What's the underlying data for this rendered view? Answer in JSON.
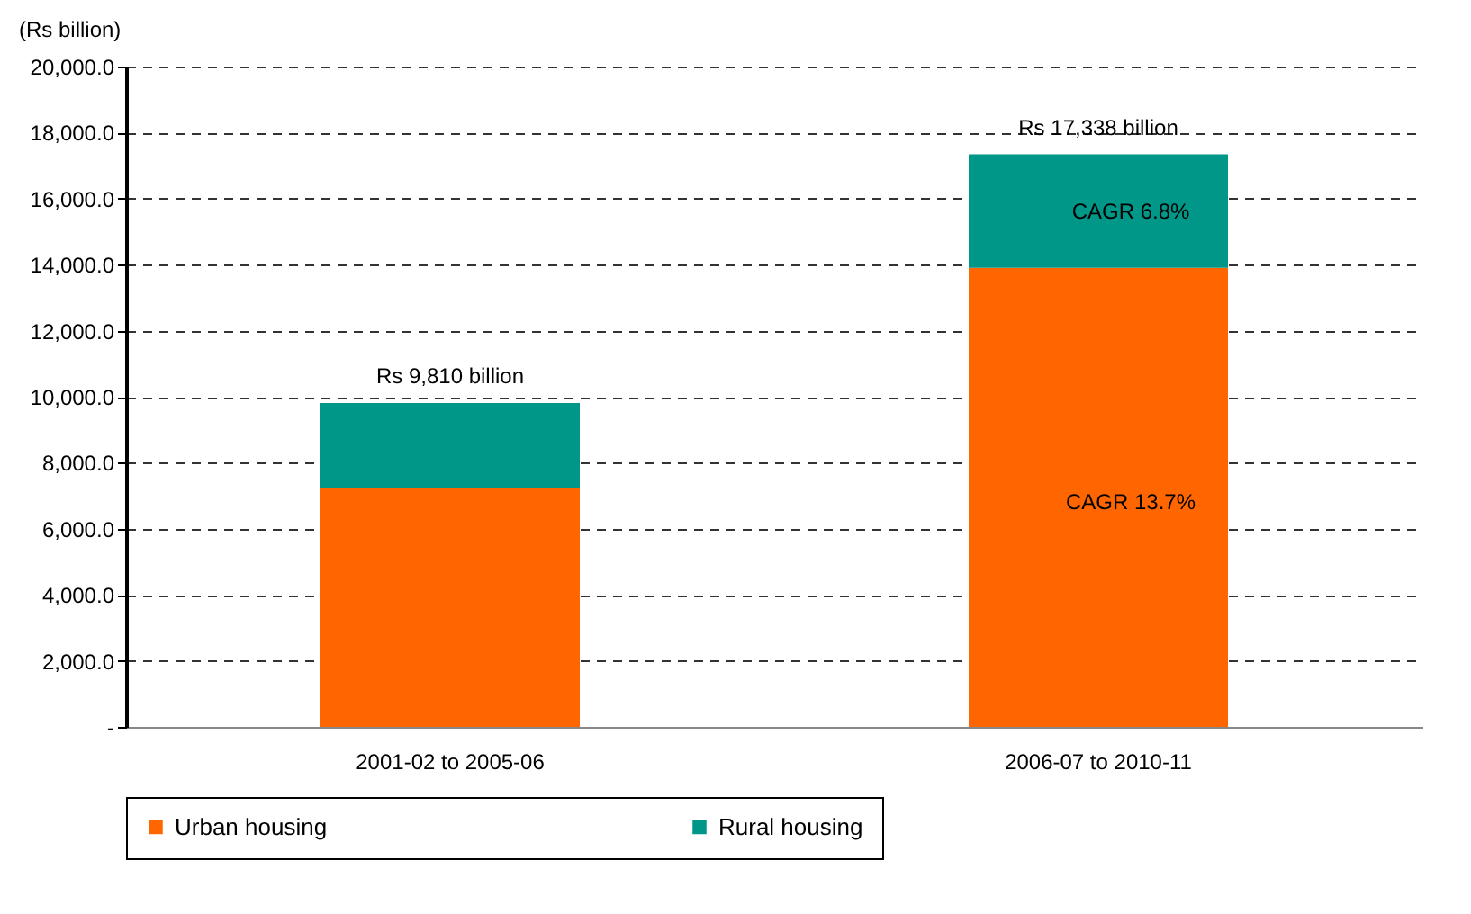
{
  "chart_data": {
    "type": "bar",
    "stacked": true,
    "ylabel": "(Rs billion)",
    "categories": [
      "2001-02 to 2005-06",
      "2006-07 to 2010-11"
    ],
    "series": [
      {
        "name": "Urban housing",
        "color": "#ff6600",
        "values": [
          7250,
          13900
        ]
      },
      {
        "name": "Rural housing",
        "color": "#009688",
        "values": [
          2560,
          3440
        ]
      }
    ],
    "ylim": [
      0,
      20000
    ],
    "yticks": [
      {
        "value": 0,
        "label": "-"
      },
      {
        "value": 2000,
        "label": "2,000.0"
      },
      {
        "value": 4000,
        "label": "4,000.0"
      },
      {
        "value": 6000,
        "label": "6,000.0"
      },
      {
        "value": 8000,
        "label": "8,000.0"
      },
      {
        "value": 10000,
        "label": "10,000.0"
      },
      {
        "value": 12000,
        "label": "12,000.0"
      },
      {
        "value": 14000,
        "label": "14,000.0"
      },
      {
        "value": 16000,
        "label": "16,000.0"
      },
      {
        "value": 18000,
        "label": "18,000.0"
      },
      {
        "value": 20000,
        "label": "20,000.0"
      }
    ],
    "grid": "y",
    "legend": "bottom",
    "annotations": [
      {
        "text": "Rs 9,810 billion",
        "x": "2001-02 to 2005-06",
        "y": 9810
      },
      {
        "text": "Rs 17,338 billion",
        "x": "2006-07 to 2010-11",
        "y": 17340
      },
      "CAGR 6.8%",
      "CAGR 13.7%"
    ]
  }
}
